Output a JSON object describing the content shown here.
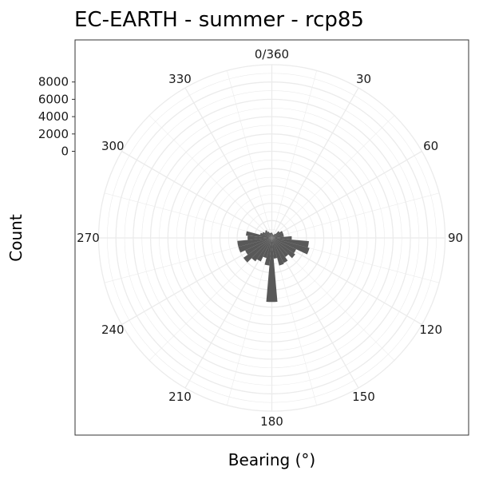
{
  "chart_data": {
    "type": "bar",
    "coord": "polar",
    "title": "EC-EARTH - summer - rcp85",
    "xlabel": "Bearing (°)",
    "ylabel": "Count",
    "x_ticks": [
      "0/360",
      "30",
      "60",
      "90",
      "120",
      "150",
      "180",
      "210",
      "240",
      "270",
      "300",
      "330"
    ],
    "x_tick_values": [
      0,
      30,
      60,
      90,
      120,
      150,
      180,
      210,
      240,
      270,
      300,
      330
    ],
    "y_ticks": [
      "0",
      "2000",
      "4000",
      "6000",
      "8000"
    ],
    "y_tick_values": [
      0,
      2000,
      4000,
      6000,
      8000
    ],
    "ylim": [
      -10000,
      10000
    ],
    "xlim": [
      0,
      360
    ],
    "bin_width": 10,
    "grid": true,
    "bar_color": "#595959",
    "grid_color": "#ebebeb",
    "panel_border_color": "#333333",
    "bearings": [
      0,
      10,
      20,
      30,
      40,
      50,
      60,
      70,
      80,
      90,
      100,
      110,
      120,
      130,
      140,
      150,
      160,
      170,
      180,
      190,
      200,
      210,
      220,
      230,
      240,
      250,
      260,
      270,
      280,
      290,
      300,
      310,
      320,
      330,
      340,
      350
    ],
    "values": [
      -9400,
      -9500,
      -9600,
      -9600,
      -9400,
      -8900,
      -8600,
      -8600,
      -8600,
      -7700,
      -5700,
      -5500,
      -6900,
      -6700,
      -7300,
      -6800,
      -6700,
      -7600,
      -2600,
      -6800,
      -7600,
      -7000,
      -6700,
      -6000,
      -6600,
      -6000,
      -6000,
      -7200,
      -7000,
      -8600,
      -8800,
      -9000,
      -8900,
      -9200,
      -9400,
      -9400
    ]
  }
}
